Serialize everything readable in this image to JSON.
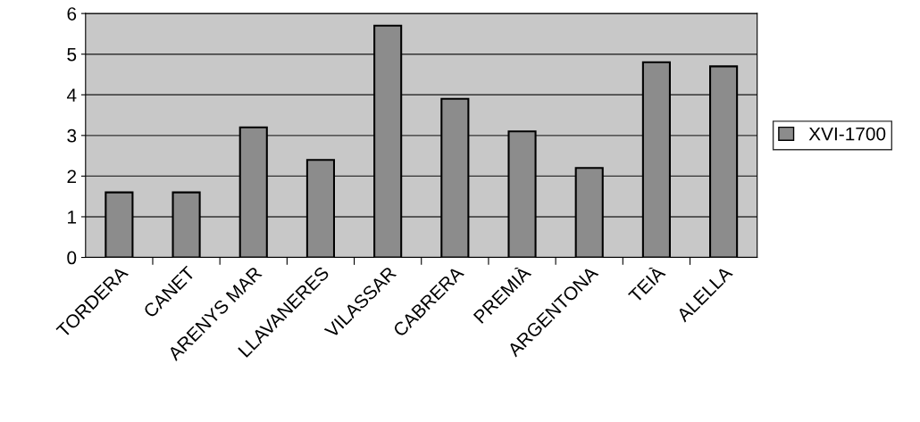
{
  "chart_data": {
    "type": "bar",
    "categories": [
      "TORDERA",
      "CANET",
      "ARENYS MAR",
      "LLAVANERES",
      "VILASSAR",
      "CABRERA",
      "PREMIÀ",
      "ARGENTONA",
      "TEIÀ",
      "ALELLA"
    ],
    "series": [
      {
        "name": "XVI-1700",
        "color": "#8c8c8c",
        "values": [
          1.6,
          1.6,
          3.2,
          2.4,
          5.7,
          3.9,
          3.1,
          2.2,
          4.8,
          4.7
        ]
      }
    ],
    "ylim": [
      0,
      6
    ],
    "yticks": [
      0,
      1,
      2,
      3,
      4,
      5,
      6
    ],
    "grid": "y",
    "legend": "right"
  }
}
